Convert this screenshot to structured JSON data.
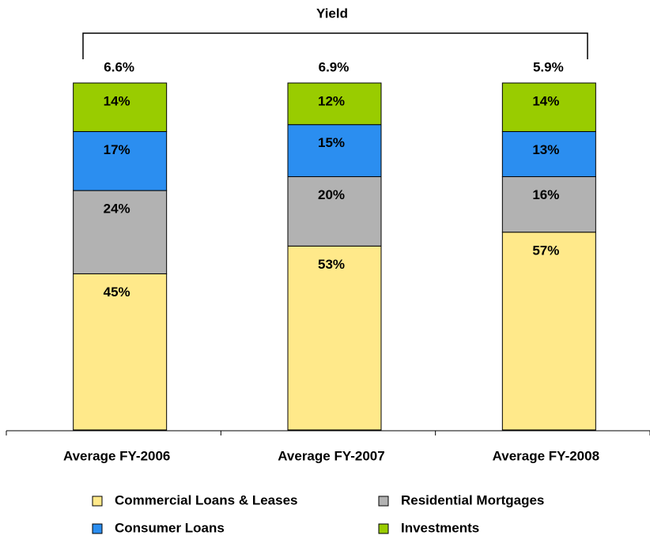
{
  "chart_data": {
    "type": "stacked-bar",
    "title": "Yield",
    "categories": [
      "Average FY-2006",
      "Average FY-2007",
      "Average FY-2008"
    ],
    "annotations": [
      "6.6%",
      "6.9%",
      "5.9%"
    ],
    "series": [
      {
        "name": "Commercial Loans & Leases",
        "color": "#FFE98A",
        "values": [
          45,
          53,
          57
        ],
        "value_labels": [
          "45%",
          "53%",
          "57%"
        ]
      },
      {
        "name": "Residential Mortgages",
        "color": "#B2B2B2",
        "values": [
          24,
          20,
          16
        ],
        "value_labels": [
          "24%",
          "20%",
          "16%"
        ]
      },
      {
        "name": "Consumer Loans",
        "color": "#2B8EF0",
        "values": [
          17,
          15,
          13
        ],
        "value_labels": [
          "17%",
          "15%",
          "13%"
        ]
      },
      {
        "name": "Investments",
        "color": "#99CC00",
        "values": [
          14,
          12,
          14
        ],
        "value_labels": [
          "14%",
          "12%",
          "14%"
        ]
      }
    ]
  }
}
